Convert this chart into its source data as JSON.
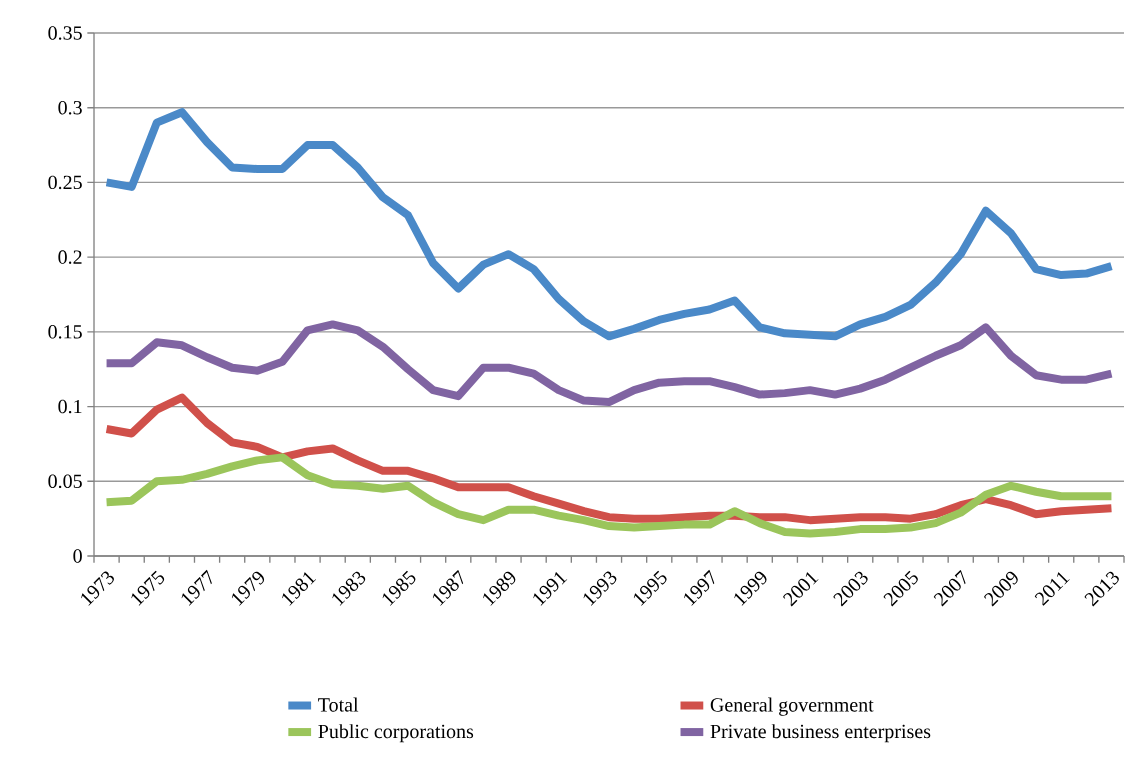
{
  "chart_data": {
    "type": "line",
    "categories": [
      "1973",
      null,
      "1975",
      null,
      "1977",
      null,
      "1979",
      null,
      "1981",
      null,
      "1983",
      null,
      "1985",
      null,
      "1987",
      null,
      "1989",
      null,
      "1991",
      null,
      "1993",
      null,
      "1995",
      null,
      "1997",
      null,
      "1999",
      null,
      "2001",
      null,
      "2003",
      null,
      "2005",
      null,
      "2007",
      null,
      "2009",
      null,
      "2011",
      null,
      "2013"
    ],
    "series": [
      {
        "name": "Total",
        "color": "#4a89c8",
        "values": [
          0.25,
          0.247,
          0.29,
          0.297,
          0.277,
          0.26,
          0.259,
          0.259,
          0.275,
          0.275,
          0.26,
          0.24,
          0.228,
          0.196,
          0.179,
          0.195,
          0.202,
          0.192,
          0.172,
          0.157,
          0.147,
          0.152,
          0.158,
          0.162,
          0.165,
          0.171,
          0.153,
          0.149,
          0.148,
          0.147,
          0.155,
          0.16,
          0.168,
          0.183,
          0.202,
          0.231,
          0.216,
          0.192,
          0.188,
          0.189,
          0.194
        ]
      },
      {
        "name": "General government",
        "color": "#d0504a",
        "values": [
          0.085,
          0.082,
          0.098,
          0.106,
          0.089,
          0.076,
          0.073,
          0.066,
          0.07,
          0.072,
          0.064,
          0.057,
          0.057,
          0.052,
          0.046,
          0.046,
          0.046,
          0.04,
          0.035,
          0.03,
          0.026,
          0.025,
          0.025,
          0.026,
          0.027,
          0.027,
          0.026,
          0.026,
          0.024,
          0.025,
          0.026,
          0.026,
          0.025,
          0.028,
          0.034,
          0.038,
          0.034,
          0.028,
          0.03,
          0.031,
          0.032
        ]
      },
      {
        "name": "Public corporations",
        "color": "#9bc55b",
        "values": [
          0.036,
          0.037,
          0.05,
          0.051,
          0.055,
          0.06,
          0.064,
          0.066,
          0.054,
          0.048,
          0.047,
          0.045,
          0.047,
          0.036,
          0.028,
          0.024,
          0.031,
          0.031,
          0.027,
          0.024,
          0.02,
          0.019,
          0.02,
          0.021,
          0.021,
          0.03,
          0.022,
          0.016,
          0.015,
          0.016,
          0.018,
          0.018,
          0.019,
          0.022,
          0.029,
          0.041,
          0.047,
          0.043,
          0.04,
          0.04,
          0.04
        ]
      },
      {
        "name": "Private business enterprises",
        "color": "#8064a2",
        "values": [
          0.129,
          0.129,
          0.143,
          0.141,
          0.133,
          0.126,
          0.124,
          0.13,
          0.151,
          0.155,
          0.151,
          0.14,
          0.125,
          0.111,
          0.107,
          0.126,
          0.126,
          0.122,
          0.111,
          0.104,
          0.103,
          0.111,
          0.116,
          0.117,
          0.117,
          0.113,
          0.108,
          0.109,
          0.111,
          0.108,
          0.112,
          0.118,
          0.126,
          0.134,
          0.141,
          0.153,
          0.134,
          0.121,
          0.118,
          0.118,
          0.122
        ]
      }
    ],
    "ylim": [
      0,
      0.35
    ],
    "yticks": [
      0,
      0.05,
      0.1,
      0.15,
      0.2,
      0.25,
      0.3,
      0.35
    ],
    "grid": "y",
    "legend": "bottom",
    "marker": "none",
    "line_style": "solid"
  }
}
